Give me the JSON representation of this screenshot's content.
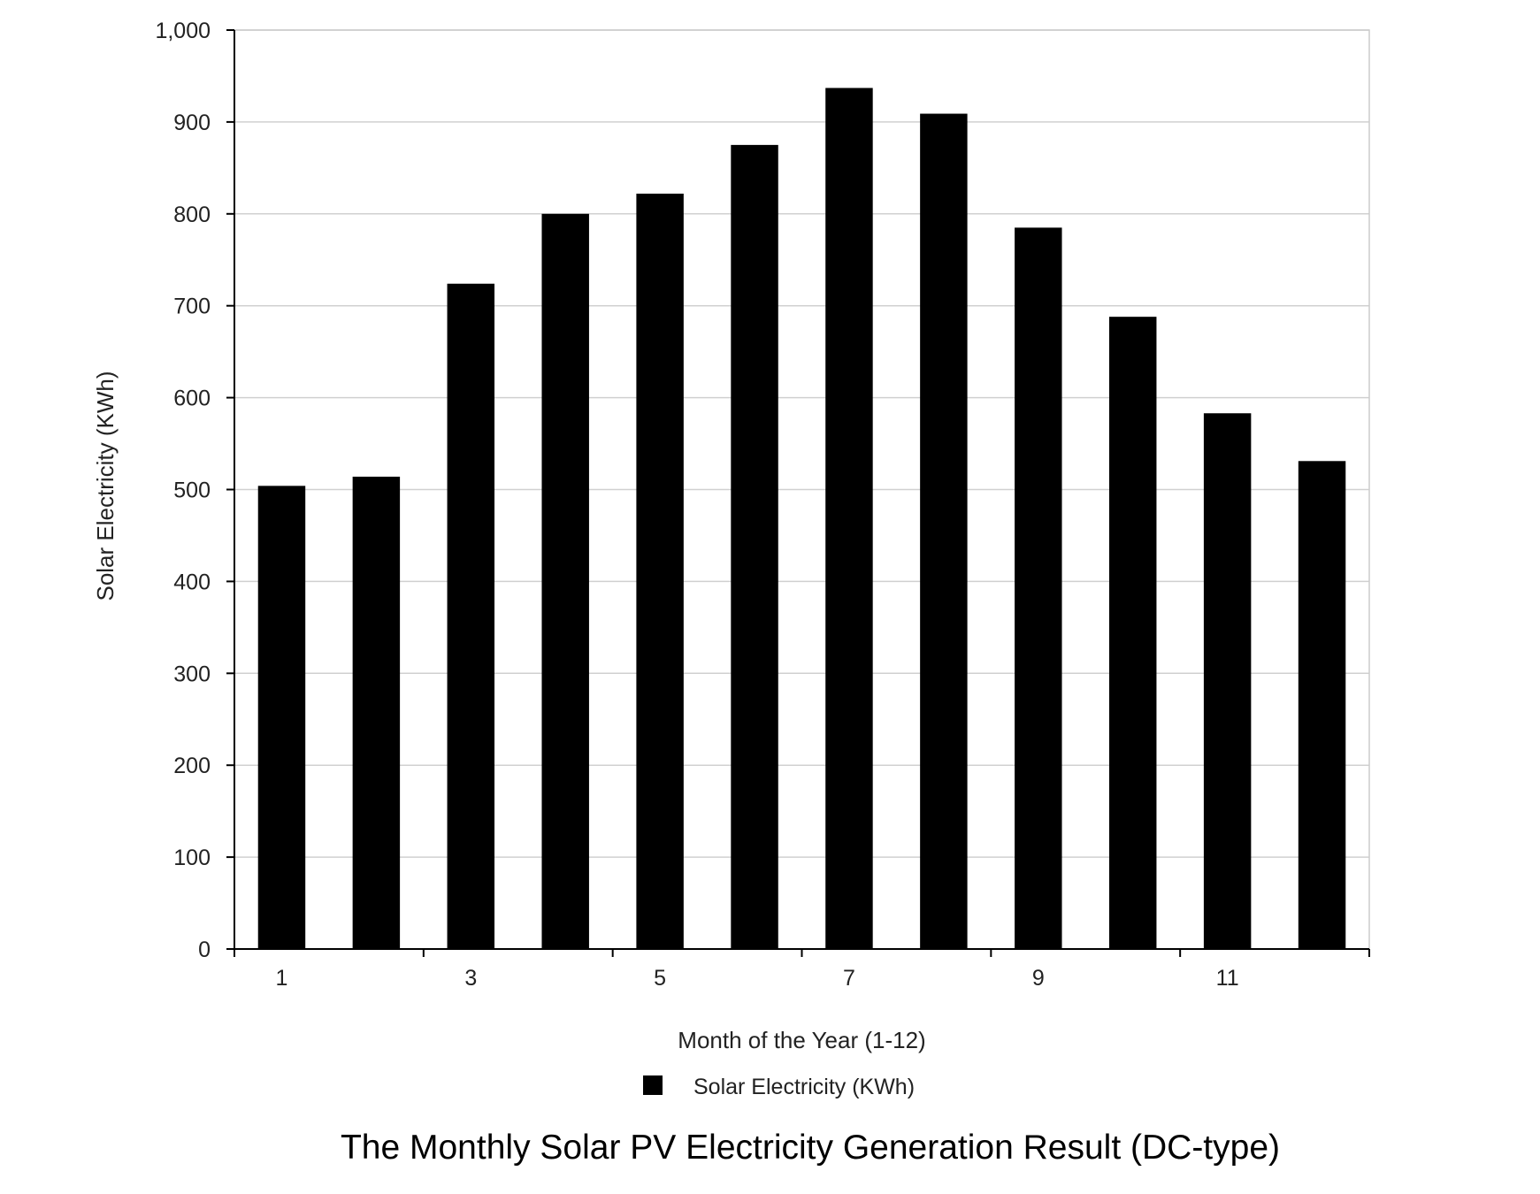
{
  "chart_data": {
    "type": "bar",
    "categories": [
      1,
      2,
      3,
      4,
      5,
      6,
      7,
      8,
      9,
      10,
      11,
      12
    ],
    "x_tick_labels": [
      "1",
      "3",
      "5",
      "7",
      "9",
      "11"
    ],
    "series": [
      {
        "name": "Solar Electricity (KWh)",
        "color": "#000000",
        "values": [
          504,
          514,
          724,
          800,
          822,
          875,
          937,
          909,
          785,
          688,
          583,
          531
        ]
      }
    ],
    "title": "The Monthly Solar PV Electricity Generation Result (DC-type)",
    "xlabel": "Month of the Year (1-12)",
    "ylabel": "Solar Electricity (KWh)",
    "ylim": [
      0,
      1000
    ],
    "y_ticks": [
      0,
      100,
      200,
      300,
      400,
      500,
      600,
      700,
      800,
      900,
      1000
    ],
    "y_tick_labels": [
      "0",
      "100",
      "200",
      "300",
      "400",
      "500",
      "600",
      "700",
      "800",
      "900",
      "1,000"
    ],
    "grid": true,
    "legend_position": "bottom"
  }
}
